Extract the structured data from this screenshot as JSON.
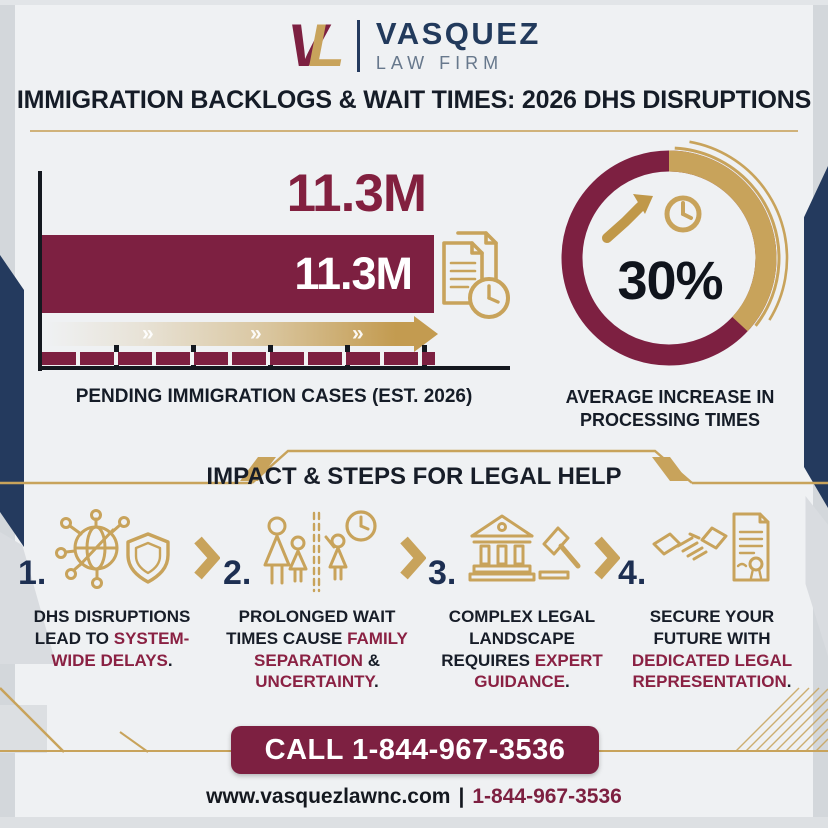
{
  "header": {
    "logo_v": "V",
    "logo_l": "L",
    "brand_name": "VASQUEZ",
    "brand_subtitle": "LAW FIRM"
  },
  "title": "IMMIGRATION BACKLOGS & WAIT TIMES: 2026 DHS DISRUPTIONS",
  "bar_chart": {
    "value_label_above": "11.3M",
    "value_label_inside": "11.3M",
    "caption": "PENDING IMMIGRATION CASES (EST. 2026)",
    "icon": "documents-clock-icon",
    "arrow_chevrons": "»"
  },
  "donut_chart": {
    "percent_label": "30%",
    "caption_line1": "AVERAGE INCREASE IN",
    "caption_line2": "PROCESSING TIMES",
    "icons": [
      "trending-up-arrow-icon",
      "clock-icon"
    ]
  },
  "section_banner": {
    "title": "IMPACT & STEPS FOR LEGAL HELP"
  },
  "steps": [
    {
      "num": "1.",
      "icon": "network-globe-shield-icon",
      "segments": [
        {
          "t": "DHS DISRUPTIONS LEAD TO ",
          "accent": false
        },
        {
          "t": "SYSTEM-WIDE DELAYS",
          "accent": true
        },
        {
          "t": ".",
          "accent": false
        }
      ]
    },
    {
      "num": "2.",
      "icon": "family-separation-clock-icon",
      "segments": [
        {
          "t": "PROLONGED WAIT TIMES CAUSE ",
          "accent": false
        },
        {
          "t": "FAMILY SEPARATION",
          "accent": true
        },
        {
          "t": " & ",
          "accent": false
        },
        {
          "t": "UNCERTAINTY",
          "accent": true
        },
        {
          "t": ".",
          "accent": false
        }
      ]
    },
    {
      "num": "3.",
      "icon": "courthouse-gavel-icon",
      "segments": [
        {
          "t": "COMPLEX LEGAL LANDSCAPE REQUIRES ",
          "accent": false
        },
        {
          "t": "EXPERT GUIDANCE",
          "accent": true
        },
        {
          "t": ".",
          "accent": false
        }
      ]
    },
    {
      "num": "4.",
      "icon": "handshake-certificate-icon",
      "segments": [
        {
          "t": "SECURE YOUR FUTURE WITH ",
          "accent": false
        },
        {
          "t": "DEDICATED LEGAL REPRESENTATION",
          "accent": true
        },
        {
          "t": ".",
          "accent": false
        }
      ]
    }
  ],
  "cta": {
    "label": "CALL 1-844-967-3536"
  },
  "footer": {
    "website": "www.vasquezlawnc.com",
    "separator": "|",
    "phone": "1-844-967-3536"
  },
  "colors": {
    "maroon": "#7d2041",
    "gold": "#c8a35b",
    "navy": "#243a5e",
    "dark": "#171d28"
  },
  "chart_data": [
    {
      "type": "bar",
      "orientation": "horizontal",
      "categories": [
        "Pending Immigration Cases (Est. 2026)"
      ],
      "values": [
        11.3
      ],
      "unit": "million cases",
      "data_labels": [
        "11.3M"
      ],
      "title": "PENDING IMMIGRATION CASES (EST. 2026)",
      "xlabel": "",
      "ylabel": "",
      "grid": false,
      "legend": false
    },
    {
      "type": "pie",
      "style": "donut",
      "categories": [
        "Average increase in processing times",
        "Remainder"
      ],
      "values": [
        30,
        70
      ],
      "center_label": "30%",
      "title": "AVERAGE INCREASE IN PROCESSING TIMES",
      "legend": false
    }
  ]
}
